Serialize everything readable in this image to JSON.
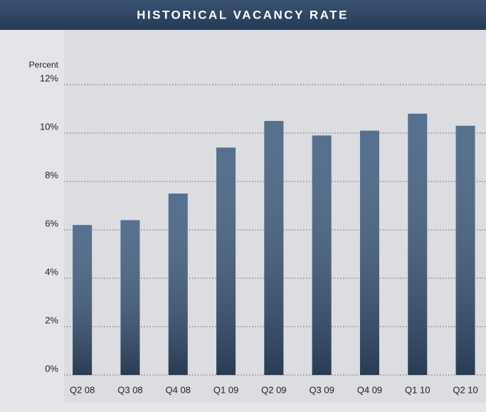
{
  "chart_data": {
    "type": "bar",
    "title": "HISTORICAL VACANCY RATE",
    "y_label": "Percent",
    "categories": [
      "Q2 08",
      "Q3 08",
      "Q4 08",
      "Q1 09",
      "Q2 09",
      "Q3 09",
      "Q4 09",
      "Q1 10",
      "Q2 10"
    ],
    "values": [
      6.2,
      6.4,
      7.5,
      9.4,
      10.5,
      9.9,
      10.1,
      10.8,
      10.3
    ],
    "color": "#3f5c7f",
    "ylim": [
      0,
      12
    ],
    "yticks": [
      {
        "value": 0,
        "label": "0%"
      },
      {
        "value": 2,
        "label": "2%"
      },
      {
        "value": 4,
        "label": "4%"
      },
      {
        "value": 6,
        "label": "6%"
      },
      {
        "value": 8,
        "label": "8%"
      },
      {
        "value": 10,
        "label": "10%"
      },
      {
        "value": 12,
        "label": "12%"
      }
    ],
    "grid": true
  }
}
